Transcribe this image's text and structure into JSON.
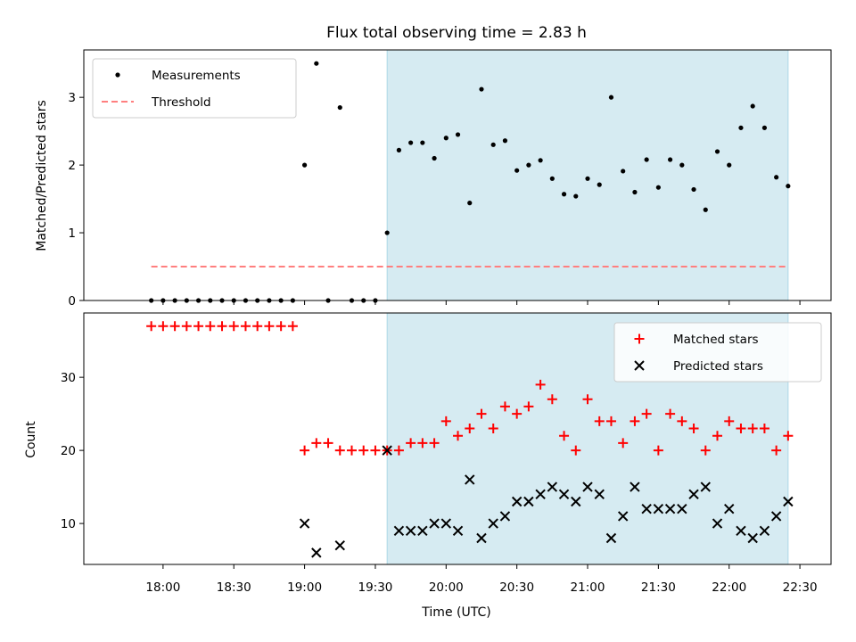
{
  "chart_data": [
    {
      "type": "scatter",
      "title": "Flux total observing time = 2.83 h",
      "xlabel": "",
      "ylabel": "Matched/Predicted stars",
      "ylim": [
        0,
        3.7
      ],
      "yticks": [
        0,
        1,
        2,
        3
      ],
      "legend_position": "top-left",
      "shaded_region": {
        "start": "19:35",
        "end": "22:25",
        "color": "#add8e6"
      },
      "series": [
        {
          "name": "Measurements",
          "style": "dot",
          "color": "#000000",
          "points": [
            [
              "17:55",
              0
            ],
            [
              "18:00",
              0
            ],
            [
              "18:05",
              0
            ],
            [
              "18:10",
              0
            ],
            [
              "18:15",
              0
            ],
            [
              "18:20",
              0
            ],
            [
              "18:25",
              0
            ],
            [
              "18:30",
              0
            ],
            [
              "18:35",
              0
            ],
            [
              "18:40",
              0
            ],
            [
              "18:45",
              0
            ],
            [
              "18:50",
              0
            ],
            [
              "18:55",
              0
            ],
            [
              "19:00",
              2.0
            ],
            [
              "19:05",
              3.5
            ],
            [
              "19:10",
              0
            ],
            [
              "19:15",
              2.85
            ],
            [
              "19:20",
              0
            ],
            [
              "19:25",
              0
            ],
            [
              "19:30",
              0
            ],
            [
              "19:35",
              1.0
            ],
            [
              "19:40",
              2.22
            ],
            [
              "19:45",
              2.33
            ],
            [
              "19:50",
              2.33
            ],
            [
              "19:55",
              2.1
            ],
            [
              "20:00",
              2.4
            ],
            [
              "20:05",
              2.45
            ],
            [
              "20:10",
              1.44
            ],
            [
              "20:15",
              3.12
            ],
            [
              "20:20",
              2.3
            ],
            [
              "20:25",
              2.36
            ],
            [
              "20:30",
              1.92
            ],
            [
              "20:35",
              2.0
            ],
            [
              "20:40",
              2.07
            ],
            [
              "20:45",
              1.8
            ],
            [
              "20:50",
              1.57
            ],
            [
              "20:55",
              1.54
            ],
            [
              "21:00",
              1.8
            ],
            [
              "21:05",
              1.71
            ],
            [
              "21:10",
              3.0
            ],
            [
              "21:15",
              1.91
            ],
            [
              "21:20",
              1.6
            ],
            [
              "21:25",
              2.08
            ],
            [
              "21:30",
              1.67
            ],
            [
              "21:35",
              2.08
            ],
            [
              "21:40",
              2.0
            ],
            [
              "21:45",
              1.64
            ],
            [
              "21:50",
              1.34
            ],
            [
              "21:55",
              2.2
            ],
            [
              "22:00",
              2.0
            ],
            [
              "22:05",
              2.55
            ],
            [
              "22:10",
              2.87
            ],
            [
              "22:15",
              2.55
            ],
            [
              "22:20",
              1.82
            ],
            [
              "22:25",
              1.69
            ]
          ]
        },
        {
          "name": "Threshold",
          "style": "dashed-line",
          "color": "#ff7f7f",
          "points": [
            [
              "17:55",
              0.5
            ],
            [
              "22:25",
              0.5
            ]
          ]
        }
      ]
    },
    {
      "type": "scatter",
      "title": "",
      "xlabel": "Time (UTC)",
      "ylabel": "Count",
      "ylim": [
        4.4,
        38.8
      ],
      "yticks": [
        10,
        20,
        30
      ],
      "xticks": [
        "18:00",
        "18:30",
        "19:00",
        "19:30",
        "20:00",
        "20:30",
        "21:00",
        "21:30",
        "22:00",
        "22:30"
      ],
      "legend_position": "top-right",
      "shaded_region": {
        "start": "19:35",
        "end": "22:25",
        "color": "#add8e6"
      },
      "series": [
        {
          "name": "Matched stars",
          "style": "plus",
          "color": "#ff0000",
          "points": [
            [
              "17:55",
              37
            ],
            [
              "18:00",
              37
            ],
            [
              "18:05",
              37
            ],
            [
              "18:10",
              37
            ],
            [
              "18:15",
              37
            ],
            [
              "18:20",
              37
            ],
            [
              "18:25",
              37
            ],
            [
              "18:30",
              37
            ],
            [
              "18:35",
              37
            ],
            [
              "18:40",
              37
            ],
            [
              "18:45",
              37
            ],
            [
              "18:50",
              37
            ],
            [
              "18:55",
              37
            ],
            [
              "19:00",
              20
            ],
            [
              "19:05",
              21
            ],
            [
              "19:10",
              21
            ],
            [
              "19:15",
              20
            ],
            [
              "19:20",
              20
            ],
            [
              "19:25",
              20
            ],
            [
              "19:30",
              20
            ],
            [
              "19:35",
              20
            ],
            [
              "19:40",
              20
            ],
            [
              "19:45",
              21
            ],
            [
              "19:50",
              21
            ],
            [
              "19:55",
              21
            ],
            [
              "20:00",
              24
            ],
            [
              "20:05",
              22
            ],
            [
              "20:10",
              23
            ],
            [
              "20:15",
              25
            ],
            [
              "20:20",
              23
            ],
            [
              "20:25",
              26
            ],
            [
              "20:30",
              25
            ],
            [
              "20:35",
              26
            ],
            [
              "20:40",
              29
            ],
            [
              "20:45",
              27
            ],
            [
              "20:50",
              22
            ],
            [
              "20:55",
              20
            ],
            [
              "21:00",
              27
            ],
            [
              "21:05",
              24
            ],
            [
              "21:10",
              24
            ],
            [
              "21:15",
              21
            ],
            [
              "21:20",
              24
            ],
            [
              "21:25",
              25
            ],
            [
              "21:30",
              20
            ],
            [
              "21:35",
              25
            ],
            [
              "21:40",
              24
            ],
            [
              "21:45",
              23
            ],
            [
              "21:50",
              20
            ],
            [
              "21:55",
              22
            ],
            [
              "22:00",
              24
            ],
            [
              "22:05",
              23
            ],
            [
              "22:10",
              23
            ],
            [
              "22:15",
              23
            ],
            [
              "22:20",
              20
            ],
            [
              "22:25",
              22
            ]
          ]
        },
        {
          "name": "Predicted stars",
          "style": "x",
          "color": "#000000",
          "points": [
            [
              "19:00",
              10
            ],
            [
              "19:05",
              6
            ],
            [
              "19:15",
              7
            ],
            [
              "19:35",
              20
            ],
            [
              "19:40",
              9
            ],
            [
              "19:45",
              9
            ],
            [
              "19:50",
              9
            ],
            [
              "19:55",
              10
            ],
            [
              "20:00",
              10
            ],
            [
              "20:05",
              9
            ],
            [
              "20:10",
              16
            ],
            [
              "20:15",
              8
            ],
            [
              "20:20",
              10
            ],
            [
              "20:25",
              11
            ],
            [
              "20:30",
              13
            ],
            [
              "20:35",
              13
            ],
            [
              "20:40",
              14
            ],
            [
              "20:45",
              15
            ],
            [
              "20:50",
              14
            ],
            [
              "20:55",
              13
            ],
            [
              "21:00",
              15
            ],
            [
              "21:05",
              14
            ],
            [
              "21:10",
              8
            ],
            [
              "21:15",
              11
            ],
            [
              "21:20",
              15
            ],
            [
              "21:25",
              12
            ],
            [
              "21:30",
              12
            ],
            [
              "21:35",
              12
            ],
            [
              "21:40",
              12
            ],
            [
              "21:45",
              14
            ],
            [
              "21:50",
              15
            ],
            [
              "21:55",
              10
            ],
            [
              "22:00",
              12
            ],
            [
              "22:05",
              9
            ],
            [
              "22:10",
              8
            ],
            [
              "22:15",
              9
            ],
            [
              "22:20",
              11
            ],
            [
              "22:25",
              13
            ]
          ]
        }
      ]
    }
  ]
}
